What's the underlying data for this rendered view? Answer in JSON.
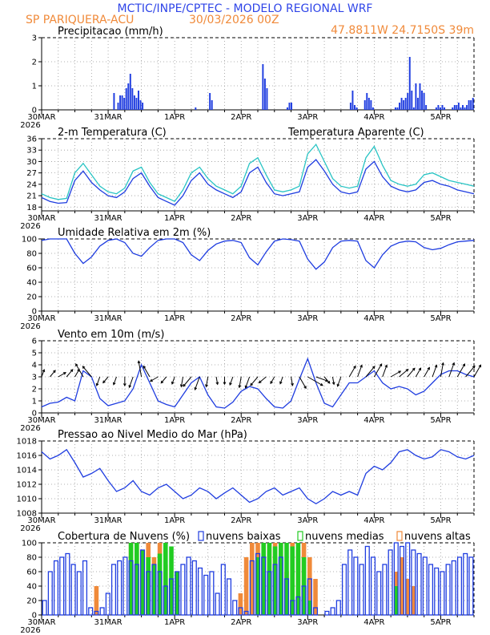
{
  "header": {
    "line1": "MCTIC/INPE/CPTEC - MODELO REGIONAL WRF",
    "station": "SP PARIQUERA-ACU",
    "run": "30/03/2026 00Z",
    "coords": "47.8811W 24.7150S 39m"
  },
  "colors": {
    "blue": "#1f3de0",
    "cyan": "#28c4c4",
    "green": "#22cc22",
    "orange": "#f08a3a",
    "header_blue": "#2f45e8",
    "header_orange": "#f08a3a"
  },
  "x_axis": {
    "labels": [
      "30MAR",
      "31MAR",
      "1APR",
      "2APR",
      "3APR",
      "4APR",
      "5APR"
    ],
    "year": "2026",
    "hours_total": 156,
    "step_hours": 3
  },
  "chart_data": [
    {
      "id": "precip",
      "type": "bar",
      "title": "Precipitacao (mm/h)",
      "ylim": [
        0,
        3
      ],
      "yticks": [
        "0",
        "1",
        "2",
        "3"
      ],
      "series": [
        {
          "name": "Precipitacao",
          "color": "#1f3de0",
          "values": [
            0,
            0,
            0,
            0,
            0,
            0,
            0,
            0,
            0,
            0,
            0,
            0,
            0,
            0,
            0,
            0,
            0,
            0,
            0,
            0,
            0,
            0,
            0,
            0,
            0,
            0,
            0,
            0,
            0,
            0,
            0,
            0,
            0,
            0,
            0,
            0.7,
            0,
            0.3,
            0.6,
            0.6,
            0.5,
            0.9,
            1.1,
            1.5,
            0.9,
            0.6,
            0.5,
            0.8,
            0.4,
            0.3,
            0,
            0,
            0,
            0,
            0,
            0,
            0,
            0,
            0,
            0,
            0,
            0,
            0,
            0,
            0,
            0,
            0,
            0,
            0,
            0,
            0,
            0,
            0,
            0,
            0,
            0.1,
            0,
            0,
            0,
            0,
            0,
            0,
            0.7,
            0.4,
            0,
            0,
            0,
            0,
            0,
            0,
            0,
            0,
            0,
            0,
            0,
            0,
            0,
            0,
            0,
            0,
            0,
            0,
            0,
            0,
            0,
            0,
            0,
            0,
            1.9,
            1.3,
            0.9,
            0,
            0,
            0,
            0,
            0,
            0,
            0,
            0,
            0,
            0.1,
            0.3,
            0.3,
            0,
            0,
            0,
            0,
            0,
            0,
            0,
            0,
            0,
            0,
            0,
            0,
            0,
            0,
            0,
            0,
            0,
            0,
            0,
            0,
            0,
            0,
            0,
            0,
            0,
            0,
            0,
            0,
            0.3,
            0.8,
            0.2,
            0.1,
            0,
            0,
            0,
            0.4,
            0.7,
            0.5,
            0.4,
            0.1,
            0,
            0,
            0,
            0,
            0,
            0,
            0,
            0,
            0,
            0,
            0.1,
            0.1,
            0.3,
            0.5,
            0.4,
            0.5,
            0.7,
            2.2,
            0.8,
            0.1,
            1.1,
            0.5,
            1.1,
            0.8,
            0.7,
            0.2,
            0,
            0,
            0,
            0,
            0.1,
            0.2,
            0.1,
            0.2,
            0.1,
            0,
            0,
            0,
            0.1,
            0.2,
            0.2,
            0.3,
            0.1,
            0.2,
            0.1,
            0.2,
            0.4,
            0.4,
            0.5
          ]
        }
      ]
    },
    {
      "id": "temp",
      "type": "line",
      "title": "2-m Temperatura (C)",
      "legend": "Temperatura Aparente (C)",
      "ylim": [
        17,
        36
      ],
      "yticks": [
        "18",
        "21",
        "24",
        "27",
        "30",
        "33",
        "36"
      ],
      "x": [
        0,
        3,
        6,
        9,
        12,
        15,
        18,
        21,
        24,
        27,
        30,
        33,
        36,
        39,
        42,
        45,
        48,
        51,
        54,
        57,
        60,
        63,
        66,
        69,
        72,
        75,
        78,
        81,
        84,
        87,
        90,
        93,
        96,
        99,
        102,
        105,
        108,
        111,
        114,
        117,
        120,
        123,
        126,
        129,
        132,
        135,
        138,
        141,
        144,
        147,
        150,
        153,
        156
      ],
      "series": [
        {
          "name": "2-m Temperatura",
          "color": "#1f3de0",
          "values": [
            20.5,
            19.5,
            19.0,
            19.2,
            25.0,
            27.5,
            24.5,
            22.5,
            21.0,
            20.5,
            22.0,
            25.5,
            27.0,
            23.5,
            20.5,
            19.5,
            18.5,
            21.0,
            25.0,
            27.0,
            24.0,
            22.5,
            21.5,
            20.5,
            22.0,
            27.0,
            28.5,
            24.5,
            21.5,
            21.0,
            21.5,
            22.0,
            28.5,
            30.5,
            27.5,
            24.0,
            22.0,
            21.5,
            22.0,
            28.0,
            30.0,
            26.0,
            23.5,
            22.5,
            22.0,
            22.5,
            24.5,
            25.0,
            24.0,
            23.5,
            22.5,
            22.0,
            21.5
          ]
        },
        {
          "name": "Temperatura Aparente",
          "color": "#28c4c4",
          "values": [
            21.5,
            20.5,
            20.0,
            20.3,
            27.0,
            29.5,
            26.5,
            23.5,
            22.0,
            21.5,
            23.0,
            27.5,
            28.5,
            24.5,
            21.5,
            20.5,
            19.5,
            22.5,
            27.0,
            28.5,
            25.5,
            23.5,
            22.5,
            21.5,
            23.5,
            29.5,
            31.0,
            26.5,
            22.5,
            22.0,
            22.5,
            23.5,
            32.0,
            34.5,
            30.0,
            25.5,
            23.5,
            23.0,
            23.5,
            31.0,
            34.0,
            29.0,
            25.0,
            24.0,
            23.5,
            24.0,
            26.5,
            27.0,
            26.0,
            25.0,
            24.5,
            24.0,
            23.5
          ]
        }
      ]
    },
    {
      "id": "rh",
      "type": "line",
      "title": "Umidade Relativa em 2m (%)",
      "ylim": [
        0,
        100
      ],
      "yticks": [
        "0",
        "20",
        "40",
        "60",
        "80",
        "100"
      ],
      "x": [
        0,
        3,
        6,
        9,
        12,
        15,
        18,
        21,
        24,
        27,
        30,
        33,
        36,
        39,
        42,
        45,
        48,
        51,
        54,
        57,
        60,
        63,
        66,
        69,
        72,
        75,
        78,
        81,
        84,
        87,
        90,
        93,
        96,
        99,
        102,
        105,
        108,
        111,
        114,
        117,
        120,
        123,
        126,
        129,
        132,
        135,
        138,
        141,
        144,
        147,
        150,
        153,
        156
      ],
      "series": [
        {
          "name": "Umidade Relativa",
          "color": "#1f3de0",
          "values": [
            98,
            100,
            100,
            100,
            80,
            66,
            75,
            90,
            98,
            100,
            95,
            80,
            76,
            88,
            98,
            100,
            100,
            95,
            78,
            70,
            84,
            93,
            97,
            98,
            95,
            74,
            64,
            82,
            97,
            100,
            99,
            97,
            72,
            58,
            68,
            88,
            97,
            98,
            97,
            70,
            60,
            78,
            90,
            95,
            97,
            96,
            88,
            85,
            87,
            92,
            96,
            97,
            98
          ]
        }
      ]
    },
    {
      "id": "wind",
      "type": "line",
      "title": "Vento em 10m (m/s)",
      "ylim": [
        0,
        6
      ],
      "yticks": [
        "0",
        "1",
        "2",
        "3",
        "4",
        "5",
        "6"
      ],
      "x": [
        0,
        3,
        6,
        9,
        12,
        15,
        18,
        21,
        24,
        27,
        30,
        33,
        36,
        39,
        42,
        45,
        48,
        51,
        54,
        57,
        60,
        63,
        66,
        69,
        72,
        75,
        78,
        81,
        84,
        87,
        90,
        93,
        96,
        99,
        102,
        105,
        108,
        111,
        114,
        117,
        120,
        123,
        126,
        129,
        132,
        135,
        138,
        141,
        144,
        147,
        150,
        153,
        156
      ],
      "series": [
        {
          "name": "Vento em 10m",
          "color": "#1f3de0",
          "values": [
            0.5,
            0.8,
            0.9,
            1.3,
            1.0,
            3.5,
            3.0,
            1.2,
            0.6,
            0.8,
            1.0,
            2.0,
            4.0,
            2.5,
            1.0,
            0.7,
            0.5,
            1.5,
            2.5,
            3.0,
            1.5,
            0.5,
            0.4,
            0.9,
            1.8,
            2.2,
            2.0,
            1.2,
            0.5,
            0.4,
            1.0,
            2.8,
            4.5,
            2.5,
            0.8,
            0.5,
            1.5,
            2.5,
            2.5,
            3.0,
            3.5,
            2.5,
            2.0,
            2.2,
            2.0,
            1.5,
            1.8,
            2.5,
            3.2,
            3.5,
            3.5,
            3.2,
            3.0
          ]
        },
        {
          "name": "direcao (graus, seta)",
          "color": "#000000",
          "values": [
            20,
            40,
            60,
            40,
            30,
            330,
            320,
            200,
            220,
            200,
            180,
            200,
            350,
            330,
            240,
            220,
            200,
            190,
            220,
            200,
            190,
            170,
            180,
            200,
            190,
            200,
            220,
            230,
            210,
            200,
            170,
            150,
            120,
            110,
            140,
            170,
            200,
            30,
            20,
            40,
            30,
            20,
            60,
            50,
            40,
            30,
            30,
            20,
            10,
            20,
            30,
            40,
            30
          ]
        }
      ]
    },
    {
      "id": "slp",
      "type": "line",
      "title": "Pressao ao Nivel Medio do Mar (hPa)",
      "ylim": [
        1008,
        1018
      ],
      "yticks": [
        "1008",
        "1010",
        "1012",
        "1014",
        "1016",
        "1018"
      ],
      "x": [
        0,
        3,
        6,
        9,
        12,
        15,
        18,
        21,
        24,
        27,
        30,
        33,
        36,
        39,
        42,
        45,
        48,
        51,
        54,
        57,
        60,
        63,
        66,
        69,
        72,
        75,
        78,
        81,
        84,
        87,
        90,
        93,
        96,
        99,
        102,
        105,
        108,
        111,
        114,
        117,
        120,
        123,
        126,
        129,
        132,
        135,
        138,
        141,
        144,
        147,
        150,
        153,
        156
      ],
      "series": [
        {
          "name": "Pressao",
          "color": "#1f3de0",
          "values": [
            1016.5,
            1015.5,
            1016.0,
            1016.8,
            1015.0,
            1013.0,
            1013.5,
            1014.2,
            1012.5,
            1011.0,
            1011.5,
            1012.5,
            1011.0,
            1010.5,
            1011.5,
            1012.0,
            1011.0,
            1010.0,
            1010.5,
            1011.5,
            1011.0,
            1010.0,
            1010.8,
            1011.5,
            1010.5,
            1009.5,
            1010.0,
            1011.0,
            1011.5,
            1010.5,
            1011.0,
            1011.5,
            1010.0,
            1009.3,
            1010.0,
            1011.0,
            1010.5,
            1011.0,
            1010.5,
            1013.5,
            1014.5,
            1014.0,
            1015.0,
            1016.5,
            1016.8,
            1016.0,
            1015.5,
            1015.8,
            1016.8,
            1016.5,
            1015.8,
            1015.5,
            1016.0
          ]
        }
      ]
    },
    {
      "id": "clouds",
      "type": "bar",
      "title": "Cobertura de Nuvens (%)",
      "legend": [
        "nuvens baixas",
        "nuvens medias",
        "nuvens altas"
      ],
      "ylim": [
        0,
        100
      ],
      "yticks": [
        "0",
        "20",
        "40",
        "60",
        "80",
        "100"
      ],
      "series": [
        {
          "name": "nuvens baixas",
          "color": "#1f3de0",
          "values": [
            20,
            60,
            75,
            80,
            85,
            70,
            60,
            75,
            10,
            5,
            10,
            30,
            70,
            75,
            80,
            75,
            70,
            90,
            60,
            70,
            60,
            40,
            50,
            60,
            70,
            80,
            75,
            65,
            55,
            60,
            30,
            70,
            50,
            20,
            10,
            5,
            75,
            85,
            80,
            60,
            70,
            80,
            50,
            20,
            25,
            40,
            50,
            10,
            0,
            5,
            10,
            20,
            70,
            90,
            80,
            70,
            95,
            80,
            60,
            70,
            90,
            100,
            95,
            100,
            90,
            85,
            80,
            70,
            65,
            60,
            70,
            75,
            80,
            85,
            80
          ]
        },
        {
          "name": "nuvens medias",
          "color": "#22cc22",
          "values": [
            0,
            0,
            0,
            0,
            0,
            0,
            0,
            0,
            0,
            0,
            0,
            0,
            0,
            0,
            0,
            100,
            100,
            90,
            80,
            70,
            85,
            100,
            95,
            60,
            0,
            0,
            0,
            0,
            0,
            0,
            0,
            0,
            0,
            0,
            0,
            0,
            0,
            80,
            100,
            100,
            95,
            100,
            100,
            95,
            100,
            80,
            20,
            0,
            0,
            0,
            0,
            0,
            0,
            0,
            0,
            0,
            0,
            0,
            0,
            0,
            0,
            40,
            0,
            0,
            0,
            0,
            0,
            0,
            0,
            0,
            0,
            0,
            0,
            0,
            0
          ]
        },
        {
          "name": "nuvens altas",
          "color": "#f08a3a",
          "values": [
            0,
            0,
            0,
            0,
            0,
            0,
            0,
            0,
            0,
            40,
            0,
            0,
            0,
            0,
            0,
            100,
            100,
            60,
            100,
            80,
            100,
            70,
            50,
            30,
            0,
            0,
            0,
            0,
            0,
            0,
            0,
            0,
            0,
            0,
            30,
            80,
            100,
            100,
            80,
            100,
            100,
            100,
            60,
            100,
            90,
            100,
            80,
            50,
            0,
            0,
            0,
            0,
            0,
            0,
            0,
            0,
            0,
            0,
            0,
            0,
            0,
            60,
            80,
            50,
            40,
            0,
            0,
            0,
            0,
            0,
            0,
            0,
            0,
            0,
            0
          ]
        }
      ]
    }
  ]
}
